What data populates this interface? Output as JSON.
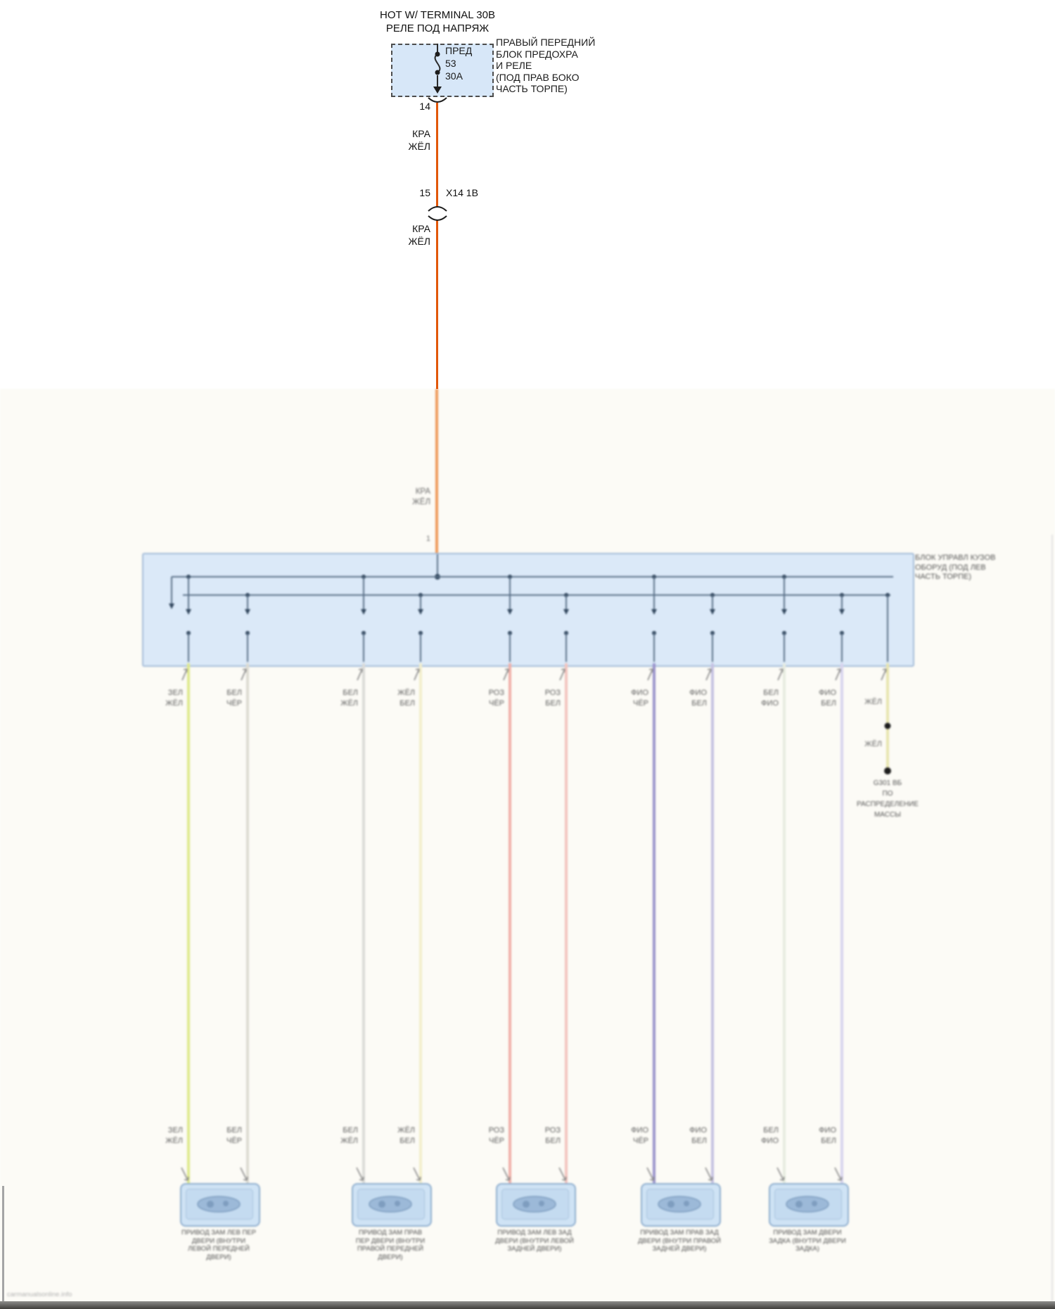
{
  "title_top": "HOT W/ TERMINAL 30B",
  "title_sub": "РЕЛЕ ПОД НАПРЯЖ",
  "fuse_box": {
    "fuse_label": "ПРЕД",
    "fuse_number": "53",
    "fuse_rating": "30А",
    "location_label": "ПРАВЫЙ ПЕРЕДНИЙ\nБЛОК ПРЕДОХРА\nИ РЕЛЕ\n(ПОД ПРАВ БОКО\nЧАСТЬ ТОРПЕ)",
    "fill_color": "#d7e7f8"
  },
  "feed": {
    "pin_out": "14",
    "wire_label_upper": "КРА\nЖЁЛ",
    "inline_connector_pin": "15",
    "inline_connector_name": "X14 1В",
    "wire_label_lower": "КРА\nЖЁЛ",
    "wire_label_long_run": "КРА\nЖЁЛ",
    "module_pin": "1",
    "wire_color_sharp": "#e25708",
    "wire_color_faded": "#ef9a5a"
  },
  "module": {
    "location_label": "БЛОК УПРАВЛ КУЗОВ\nОБОРУД (ПОД ЛЕВ\nЧАСТЬ ТОРПЕ)",
    "fill_color": "#dbe9f8",
    "border_color": "#a4bcd8"
  },
  "outputs": [
    {
      "label": "ЗЕЛ\nЖЁЛ",
      "color": "#dfe98c"
    },
    {
      "label": "БЕЛ\nЧЁР",
      "color": "#dddbd2"
    },
    {
      "label": "БЕЛ\nЖЁЛ",
      "color": "#dbdbd8"
    },
    {
      "label": "ЖЁЛ\nБЕЛ",
      "color": "#f2eecb"
    },
    {
      "label": "РОЗ\nЧЁР",
      "color": "#f0b0a8"
    },
    {
      "label": "РОЗ\nБЕЛ",
      "color": "#f3c4be"
    },
    {
      "label": "ФИО\nЧЁР",
      "color": "#9a93cb"
    },
    {
      "label": "ФИО\nБЕЛ",
      "color": "#c5c1e2"
    },
    {
      "label": "БЕЛ\nФИО",
      "color": "#e7ece0"
    },
    {
      "label": "ФИО\nБЕЛ",
      "color": "#d8d4ee"
    }
  ],
  "ground": {
    "wire_label_upper": "ЖЁЛ",
    "wire_label_lower": "ЖЁЛ",
    "wire_color": "#e8e4ae",
    "termination_label": "G301 ВБ\nПО\nРАСПРЕДЕЛЕНИЕ\nМАССЫ"
  },
  "actuators": [
    {
      "caption": "ПРИВОД ЗАМ ЛЕВ ПЕР\nДВЕРИ (ВНУТРИ\nЛЕВОЙ ПЕРЕДНЕЙ\nДВЕРИ)"
    },
    {
      "caption": "ПРИВОД ЗАМ ПРАВ\nПЕР ДВЕРИ (ВНУТРИ\nПРАВОЙ ПЕРЕДНЕЙ\nДВЕРИ)"
    },
    {
      "caption": "ПРИВОД ЗАМ ЛЕВ ЗАД\nДВЕРИ (ВНУТРИ ЛЕВОЙ\nЗАДНЕЙ ДВЕРИ)"
    },
    {
      "caption": "ПРИВОД ЗАМ ПРАВ ЗАД\nДВЕРИ (ВНУТРИ ПРАВОЙ\nЗАДНЕЙ ДВЕРИ)"
    },
    {
      "caption": "ПРИВОД ЗАМ ДВЕРИ\nЗАДКА (ВНУТРИ ДВЕРИ\nЗАДКА)"
    }
  ],
  "watermark": "carmanualsonline.info"
}
